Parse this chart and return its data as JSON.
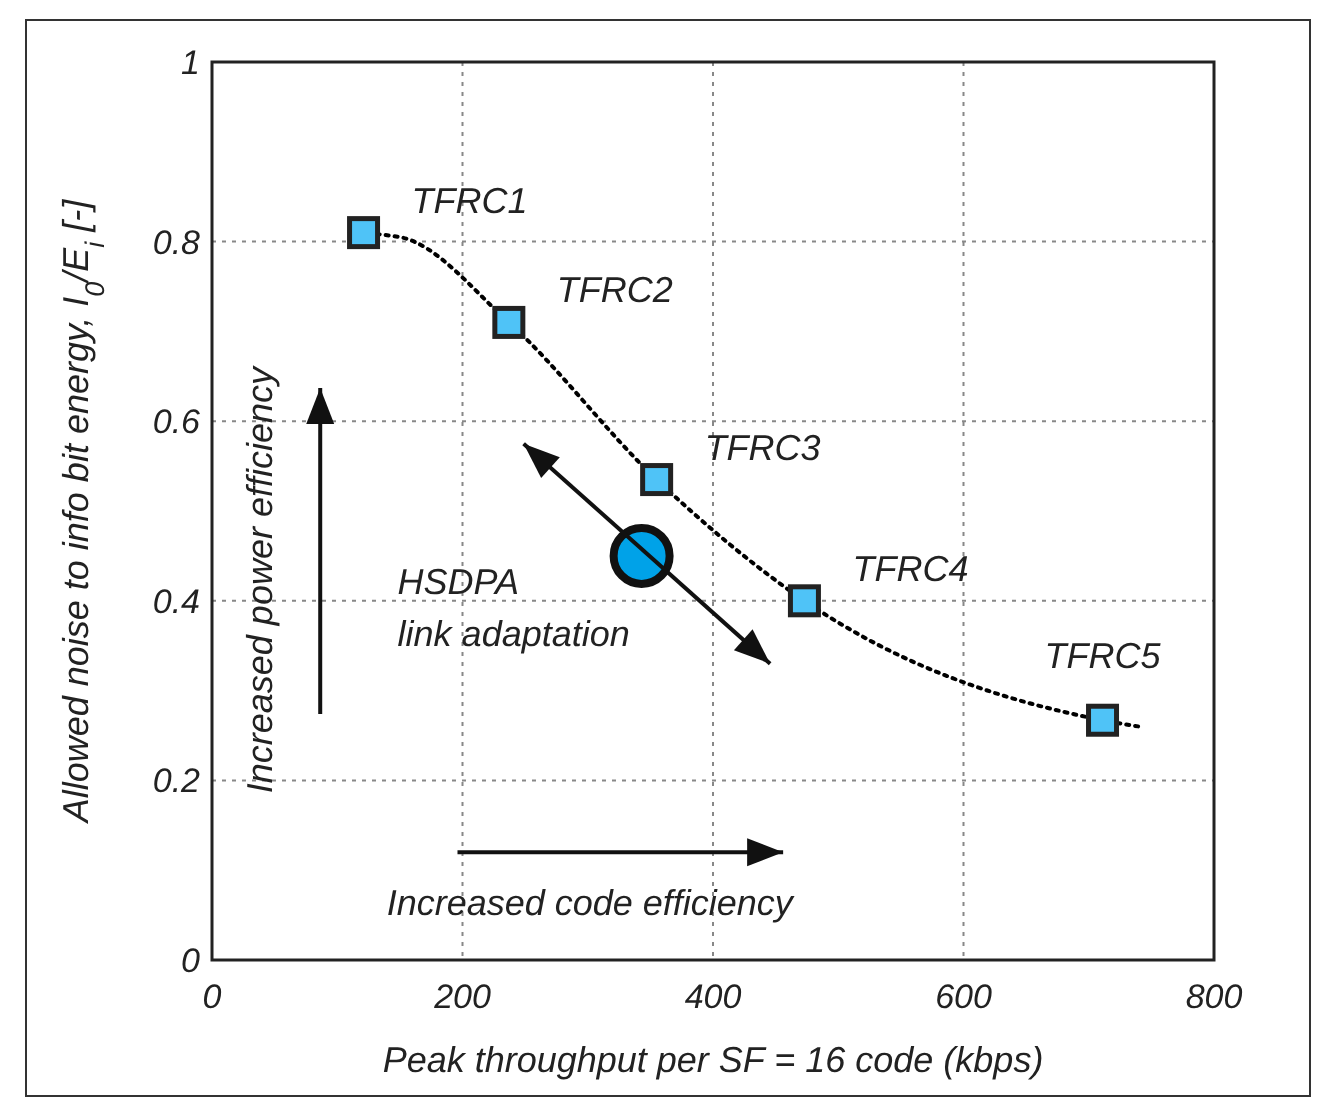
{
  "chart_data": {
    "type": "scatter",
    "xlabel": "Peak throughput per SF = 16 code (kbps)",
    "ylabel": "Allowed noise to info bit energy, I$_{0}$/E$_{i}$ [-]",
    "xlim": [
      0,
      800
    ],
    "xticks": [
      0,
      200,
      400,
      600,
      800
    ],
    "ylim": [
      0,
      1
    ],
    "yticks": [
      0,
      0.2,
      0.4,
      0.6,
      0.8,
      1
    ],
    "grid": true,
    "series": [
      {
        "type": "line",
        "line_style": "dotted",
        "color": "#000000",
        "x": [
          110,
          150,
          237,
          355,
          473,
          711,
          740
        ],
        "values": [
          0.81,
          0.805,
          0.71,
          0.535,
          0.4,
          0.267,
          0.26
        ]
      },
      {
        "marker": "square",
        "color": "#4fc3f7",
        "x": [
          121,
          237,
          355,
          473,
          711
        ],
        "values": [
          0.81,
          0.71,
          0.535,
          0.4,
          0.267
        ]
      },
      {
        "marker": "circle",
        "color": "#00a2e8",
        "x": [
          343
        ],
        "values": [
          0.45
        ]
      }
    ],
    "annotations": [
      {
        "text": "TFRC1",
        "x": 121,
        "y": 0.81
      },
      {
        "text": "TFRC2",
        "x": 237,
        "y": 0.71
      },
      {
        "text": "TFRC3",
        "x": 355,
        "y": 0.535
      },
      {
        "text": "TFRC4",
        "x": 473,
        "y": 0.4
      },
      {
        "text": "TFRC5",
        "x": 711,
        "y": 0.267
      },
      {
        "text": "HSDPA\nlink adaptation",
        "x": 343,
        "y": 0.45
      },
      "Increased power efficiency",
      "Increased code  efficiency"
    ]
  }
}
